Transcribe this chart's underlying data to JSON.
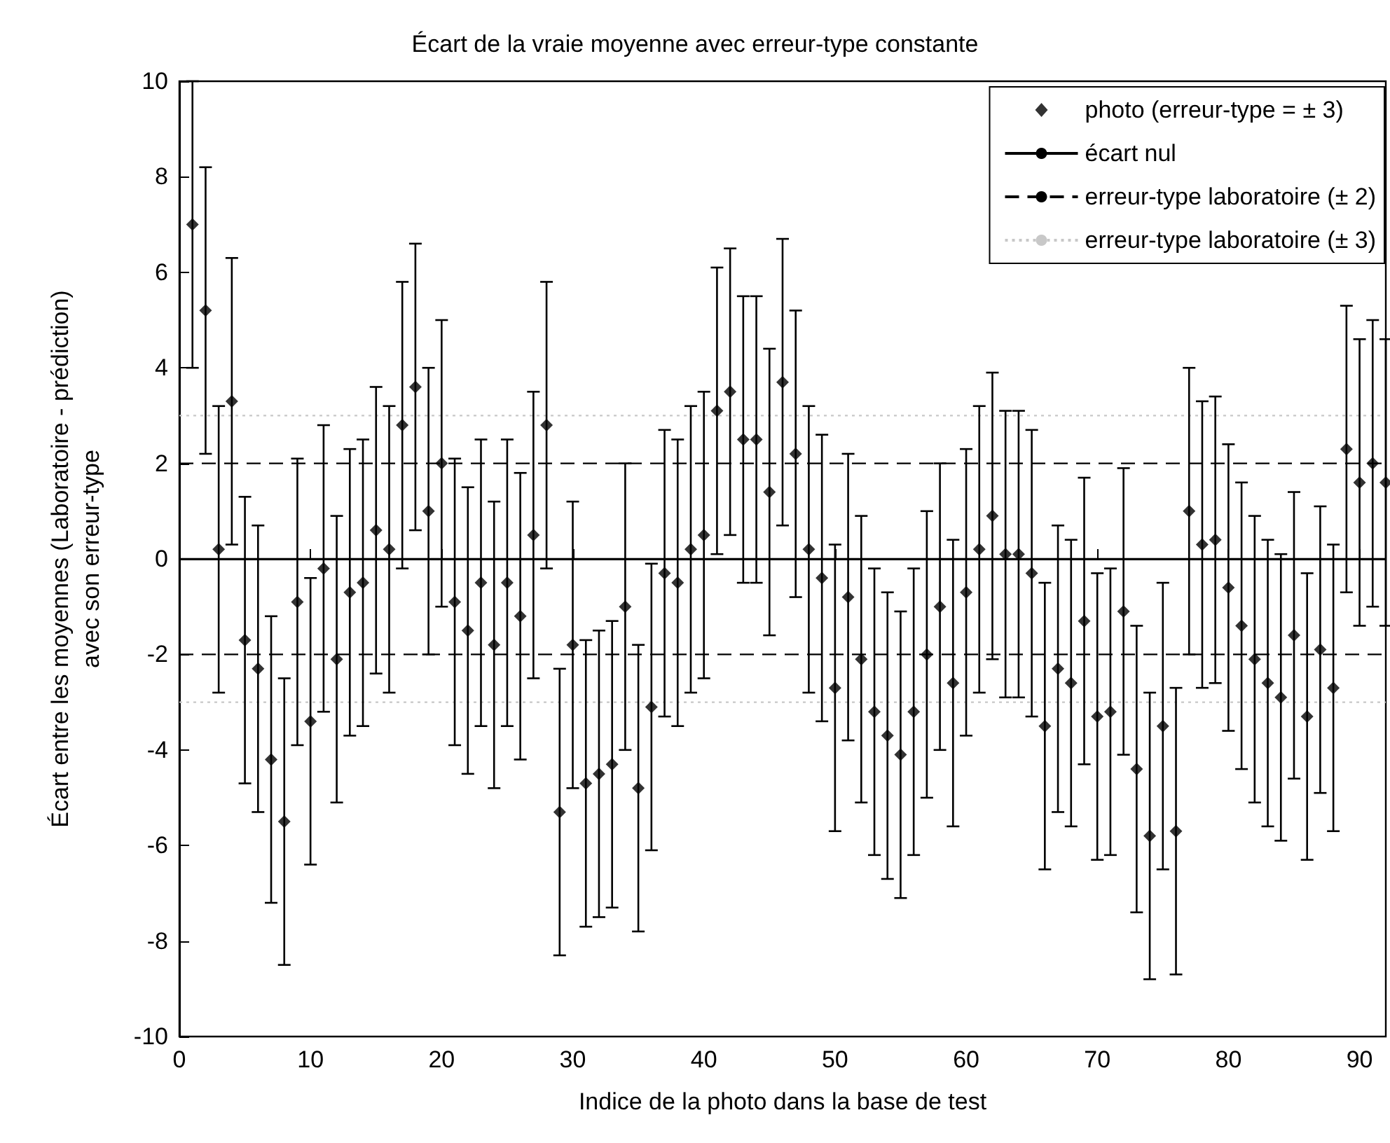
{
  "chart_data": {
    "type": "scatter",
    "title": "Écart de la vraie moyenne avec erreur-type constante",
    "xlabel": "Indice de la photo dans la base de test",
    "ylabel": "Écart entre les moyennes (Laboratoire - prédiction)\navec son erreur-type",
    "x": [
      1,
      2,
      3,
      4,
      5,
      6,
      7,
      8,
      9,
      10,
      11,
      12,
      13,
      14,
      15,
      16,
      17,
      18,
      19,
      20,
      21,
      22,
      23,
      24,
      25,
      26,
      27,
      28,
      29,
      30,
      31,
      32,
      33,
      34,
      35,
      36,
      37,
      38,
      39,
      40,
      41,
      42,
      43,
      44,
      45,
      46,
      47,
      48,
      49,
      50,
      51,
      52,
      53,
      54,
      55,
      56,
      57,
      58,
      59,
      60,
      61,
      62,
      63,
      64,
      65,
      66,
      67,
      68,
      69,
      70,
      71,
      72,
      73,
      74,
      75,
      76,
      77,
      78,
      79,
      80,
      81,
      82,
      83,
      84,
      85,
      86,
      87,
      88,
      89,
      90,
      91,
      92
    ],
    "series": [
      {
        "name": "photo (erreur-type = ± 3)",
        "color": "#000000",
        "marker": "diamond",
        "values": [
          7.0,
          5.2,
          0.2,
          3.3,
          -1.7,
          -2.3,
          -4.2,
          -5.5,
          -0.9,
          -3.4,
          -0.2,
          -2.1,
          -0.7,
          -0.5,
          0.6,
          0.2,
          2.8,
          3.6,
          1.0,
          2.0,
          -0.9,
          -1.5,
          -0.5,
          -1.8,
          -0.5,
          -1.2,
          0.5,
          2.8,
          -5.3,
          -1.8,
          -4.7,
          -4.5,
          -4.3,
          -1.0,
          -4.8,
          -3.1,
          -0.3,
          -0.5,
          0.2,
          0.5,
          3.1,
          3.5,
          2.5,
          2.5,
          1.4,
          3.7,
          2.2,
          0.2,
          -0.4,
          -2.7,
          -0.8,
          -2.1,
          -3.2,
          -3.7,
          -4.1,
          -3.2,
          -2.0,
          -1.0,
          -2.6,
          -0.7,
          0.2,
          0.9,
          0.1,
          0.1,
          -0.3,
          -3.5,
          -2.3,
          -2.6,
          -1.3,
          -3.3,
          -3.2,
          -1.1,
          -4.4,
          -5.8,
          -3.5,
          -5.7,
          1.0,
          0.3,
          0.4,
          -0.6,
          -1.4,
          -2.1,
          -2.6,
          -2.9,
          -1.6,
          -3.3,
          -1.9,
          -2.7,
          2.3,
          1.6,
          2.0,
          1.6
        ],
        "errors": [
          3,
          3,
          3,
          3,
          3,
          3,
          3,
          3,
          3,
          3,
          3,
          3,
          3,
          3,
          3,
          3,
          3,
          3,
          3,
          3,
          3,
          3,
          3,
          3,
          3,
          3,
          3,
          3,
          3,
          3,
          3,
          3,
          3,
          3,
          3,
          3,
          3,
          3,
          3,
          3,
          3,
          3,
          3,
          3,
          3,
          3,
          3,
          3,
          3,
          3,
          3,
          3,
          3,
          3,
          3,
          3,
          3,
          3,
          3,
          3,
          3,
          3,
          3,
          3,
          3,
          3,
          3,
          3,
          3,
          3,
          3,
          3,
          3,
          3,
          3,
          3,
          3,
          3,
          3,
          3,
          3,
          3,
          3,
          3,
          3,
          3,
          3,
          3,
          3,
          3,
          3,
          3
        ]
      }
    ],
    "ref_lines": [
      {
        "axis": "y",
        "value": 0,
        "label": "écart nul",
        "color": "#000000",
        "line_style": "solid"
      },
      {
        "axis": "y",
        "value": 2,
        "label": "erreur-type laboratoire (± 2)",
        "color": "#000000",
        "line_style": "dashed"
      },
      {
        "axis": "y",
        "value": -2,
        "color": "#000000",
        "line_style": "dashed"
      },
      {
        "axis": "y",
        "value": 3,
        "label": "erreur-type laboratoire (± 3)",
        "color": "#c8c8c8",
        "line_style": "dotted"
      },
      {
        "axis": "y",
        "value": -3,
        "color": "#c8c8c8",
        "line_style": "dotted"
      }
    ],
    "xlim": [
      0,
      92
    ],
    "xticks": [
      0,
      10,
      20,
      30,
      40,
      50,
      60,
      70,
      80,
      90
    ],
    "ylim": [
      -10,
      10
    ],
    "yticks": [
      -10,
      -8,
      -6,
      -4,
      -2,
      0,
      2,
      4,
      6,
      8,
      10
    ],
    "grid": false,
    "legend": "top right"
  }
}
